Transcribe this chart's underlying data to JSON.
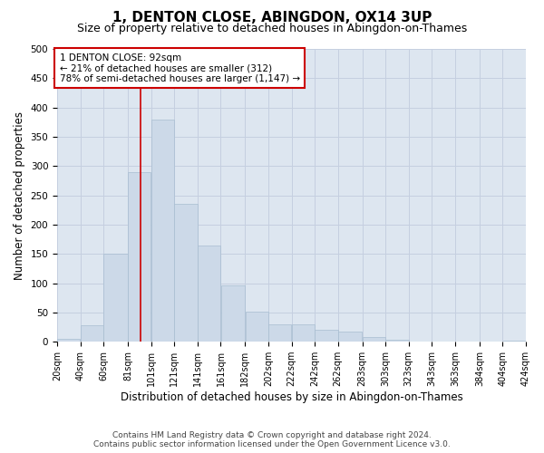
{
  "title": "1, DENTON CLOSE, ABINGDON, OX14 3UP",
  "subtitle": "Size of property relative to detached houses in Abingdon-on-Thames",
  "xlabel": "Distribution of detached houses by size in Abingdon-on-Thames",
  "ylabel": "Number of detached properties",
  "bar_color": "#ccd9e8",
  "bar_edge_color": "#a8bdd0",
  "grid_color": "#c5cfe0",
  "bg_color": "#dde6f0",
  "annotation_text": "1 DENTON CLOSE: 92sqm\n← 21% of detached houses are smaller (312)\n78% of semi-detached houses are larger (1,147) →",
  "annotation_box_color": "#cc0000",
  "vline_x": 92,
  "vline_color": "#cc0000",
  "bin_edges": [
    20,
    40,
    60,
    81,
    101,
    121,
    141,
    161,
    182,
    202,
    222,
    242,
    262,
    283,
    303,
    323,
    343,
    363,
    384,
    404,
    424
  ],
  "bar_heights": [
    5,
    28,
    150,
    290,
    380,
    235,
    165,
    97,
    52,
    30,
    30,
    20,
    17,
    8,
    3,
    1,
    1,
    1,
    0,
    2
  ],
  "xlim": [
    20,
    424
  ],
  "ylim": [
    0,
    500
  ],
  "yticks": [
    0,
    50,
    100,
    150,
    200,
    250,
    300,
    350,
    400,
    450,
    500
  ],
  "tick_labels": [
    "20sqm",
    "40sqm",
    "60sqm",
    "81sqm",
    "101sqm",
    "121sqm",
    "141sqm",
    "161sqm",
    "182sqm",
    "202sqm",
    "222sqm",
    "242sqm",
    "262sqm",
    "283sqm",
    "303sqm",
    "323sqm",
    "343sqm",
    "363sqm",
    "384sqm",
    "404sqm",
    "424sqm"
  ],
  "footer_line1": "Contains HM Land Registry data © Crown copyright and database right 2024.",
  "footer_line2": "Contains public sector information licensed under the Open Government Licence v3.0.",
  "title_fontsize": 11,
  "subtitle_fontsize": 9,
  "xlabel_fontsize": 8.5,
  "ylabel_fontsize": 8.5,
  "tick_fontsize": 7,
  "annot_fontsize": 7.5,
  "footer_fontsize": 6.5
}
